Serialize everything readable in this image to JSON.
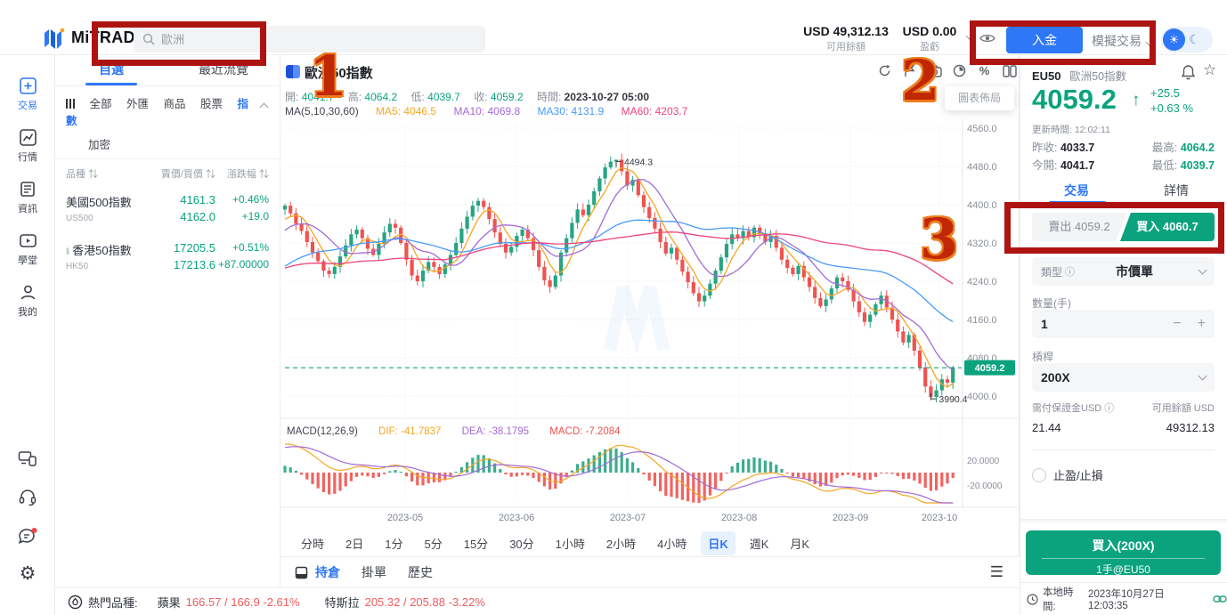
{
  "icons": {
    "sort": "⇅",
    "info": "ⓘ",
    "star": "☆",
    "sun": "☀",
    "moon": "☾",
    "gear": "⚙",
    "menu": "☰",
    "arrow_up": "↑",
    "percent": "%",
    "minus": "−",
    "plus": "+"
  },
  "topbar": {
    "logo_text": "MiTRADE",
    "search_placeholder": "歐洲",
    "balance_value": "USD 49,312.13",
    "balance_label": "可用餘額",
    "pnl_value": "USD 0.00",
    "pnl_label": "盈虧",
    "deposit_label": "入金",
    "demo_label": "模擬交易"
  },
  "sidebar": {
    "items": [
      {
        "label": "交易"
      },
      {
        "label": "行情"
      },
      {
        "label": "資訊"
      },
      {
        "label": "學堂"
      },
      {
        "label": "我的"
      }
    ]
  },
  "watchlist": {
    "tabs": [
      "自選",
      "最近流覽"
    ],
    "filters": [
      "全部",
      "外匯",
      "商品",
      "股票",
      "指數",
      "加密"
    ],
    "headers": [
      "品種",
      "賣價/買價",
      "漲跌幅"
    ],
    "rows": [
      {
        "name": "美國500指數",
        "code": "US500",
        "sell": "4161.3",
        "buy": "4162.0",
        "change_pct": "+0.46%",
        "change_val": "+19.0"
      },
      {
        "name": "香港50指數",
        "code": "HK50",
        "sell": "17205.5",
        "buy": "17213.6",
        "change_pct": "+0.51%",
        "change_val": "+87.00000"
      }
    ]
  },
  "chart": {
    "title": "歐洲50指數",
    "layout_tooltip": "圖表佈局",
    "ohlc": {
      "open_label": "開:",
      "open": "4041.7",
      "high_label": "高:",
      "high": "4064.2",
      "low_label": "低:",
      "low": "4039.7",
      "close_label": "收:",
      "close": "4059.2",
      "time_label": "時間:",
      "time": "2023-10-27 05:00"
    },
    "ma": {
      "title": "MA(5,10,30,60)",
      "ma5": "MA5: 4046.5",
      "ma10": "MA10: 4069.8",
      "ma30": "MA30: 4131.9",
      "ma60": "MA60: 4203.7"
    },
    "macd": {
      "title": "MACD(12,26,9)",
      "dif": "DIF: -41.7837",
      "dea": "DEA: -38.1795",
      "macd": "MACD: -7.2084"
    },
    "timeframes": [
      "分時",
      "2日",
      "1分",
      "5分",
      "15分",
      "30分",
      "1小時",
      "2小時",
      "4小時",
      "日K",
      "週K",
      "月K"
    ],
    "position_tabs": [
      "持倉",
      "掛單",
      "歷史"
    ]
  },
  "chart_data": {
    "type": "candlestick",
    "title": "歐洲50指數 日K",
    "months": [
      "2023-05",
      "2023-06",
      "2023-07",
      "2023-08",
      "2023-09",
      "2023-10"
    ],
    "y_ticks": [
      "4560.0",
      "4480.0",
      "4400.0",
      "4320.0",
      "4240.0",
      "4160.0",
      "4080.0",
      "4000.0"
    ],
    "y_tick_values": [
      4560,
      4480,
      4400,
      4320,
      4240,
      4160,
      4080,
      4000
    ],
    "ylim": [
      3960,
      4580
    ],
    "macd_ticks": [
      "20.0000",
      "-20.0000"
    ],
    "price_line": 4059.2,
    "price_line_label": "4059.2",
    "annotation_high": "4494.3",
    "annotation_low": "3990.4",
    "first_open": 4390,
    "pre_closes": [
      4150,
      4162,
      4171,
      4180,
      4192,
      4185,
      4198,
      4210,
      4222,
      4215,
      4230,
      4245,
      4238,
      4252,
      4266,
      4260,
      4274,
      4288,
      4280,
      4295,
      4310,
      4302,
      4318,
      4332,
      4325,
      4340,
      4355,
      4348,
      4362,
      4385
    ],
    "closes": [
      4398,
      4382,
      4360,
      4345,
      4322,
      4300,
      4282,
      4262,
      4255,
      4270,
      4292,
      4315,
      4338,
      4348,
      4330,
      4308,
      4295,
      4318,
      4342,
      4360,
      4352,
      4320,
      4285,
      4252,
      4240,
      4262,
      4280,
      4270,
      4255,
      4275,
      4295,
      4320,
      4350,
      4375,
      4398,
      4408,
      4395,
      4370,
      4342,
      4318,
      4300,
      4312,
      4335,
      4348,
      4330,
      4305,
      4270,
      4242,
      4228,
      4252,
      4300,
      4330,
      4362,
      4390,
      4378,
      4400,
      4428,
      4455,
      4478,
      4490,
      4494,
      4470,
      4440,
      4452,
      4420,
      4395,
      4372,
      4350,
      4322,
      4298,
      4310,
      4285,
      4260,
      4238,
      4215,
      4198,
      4210,
      4235,
      4262,
      4290,
      4318,
      4338,
      4330,
      4345,
      4332,
      4352,
      4340,
      4322,
      4335,
      4310,
      4285,
      4268,
      4255,
      4272,
      4248,
      4228,
      4205,
      4188,
      4202,
      4225,
      4248,
      4240,
      4222,
      4198,
      4175,
      4155,
      4170,
      4192,
      4210,
      4185,
      4160,
      4135,
      4112,
      4128,
      4095,
      4060,
      4020,
      3998,
      4012,
      4035,
      4028,
      4059.2
    ],
    "high_extreme": 4494.3,
    "low_extreme": 3990.4,
    "ma_windows": [
      5,
      10,
      30,
      60
    ],
    "ma_colors": [
      "#f5a623",
      "#a36bd6",
      "#4a9bf5",
      "#f0447c"
    ],
    "up_color": "#27a482",
    "down_color": "#ef5350"
  },
  "trade_panel": {
    "symbol": "EU50",
    "name": "歐洲50指數",
    "price": "4059.2",
    "change": "+25.5",
    "change_pct": "+0.63 %",
    "updated_label": "更新時間:",
    "updated": "12:02:11",
    "prev_label": "昨收:",
    "prev": "4033.7",
    "high_label": "最高:",
    "high": "4064.2",
    "open_label": "今開:",
    "open": "4041.7",
    "low_label": "最低:",
    "low": "4039.7",
    "tabs": [
      "交易",
      "詳情"
    ],
    "sell_label": "賣出 4059.2",
    "buy_label": "買入 4060.7",
    "type_label": "類型",
    "type_value": "市價單",
    "qty_label": "數量(手)",
    "qty_value": "1",
    "leverage_label": "槓桿",
    "leverage_value": "200X",
    "margin_label": "需付保證金USD",
    "margin_value": "21.44",
    "avail_label": "可用餘額 USD",
    "avail_value": "49312.13",
    "tpsl_label": "止盈/止損",
    "submit_label": "買入(200X)",
    "submit_sub": "1手@EU50"
  },
  "bottombar": {
    "hot_label": "熱門品種:",
    "items": [
      {
        "name": "蘋果",
        "quote": "166.57 / 166.9 -2.61%"
      },
      {
        "name": "特斯拉",
        "quote": "205.32 / 205.88 -3.22%"
      }
    ],
    "time_label": "本地時間:",
    "time_value": "2023年10月27日 12:03:35"
  },
  "annotations": {
    "n1": "1",
    "n2": "2",
    "n3": "3"
  }
}
